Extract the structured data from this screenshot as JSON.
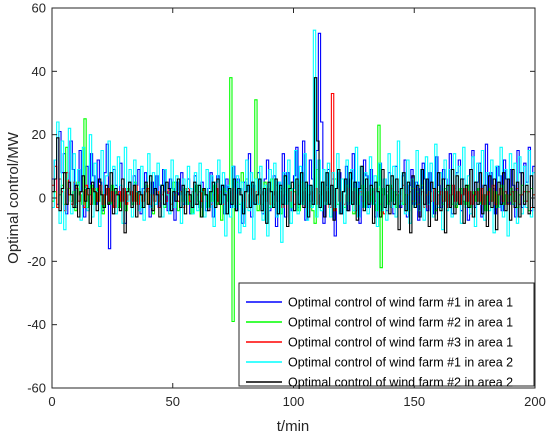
{
  "chart_data": {
    "type": "line",
    "title": "",
    "xlabel": "t/min",
    "ylabel": "Optimal control/MW",
    "xlim": [
      0,
      200
    ],
    "ylim": [
      -60,
      60
    ],
    "xticks": [
      0,
      50,
      100,
      150,
      200
    ],
    "yticks": [
      -60,
      -40,
      -20,
      0,
      20,
      40,
      60
    ],
    "grid": false,
    "legend_position": "bottom-right",
    "step": true,
    "series": [
      {
        "name": "Optimal control of wind farm #1 in area 1",
        "color": "#0000ff",
        "values": [
          6,
          12,
          -2,
          21,
          8,
          14,
          -5,
          3,
          18,
          9,
          -3,
          4,
          15,
          2,
          -6,
          10,
          3,
          14,
          7,
          -2,
          12,
          5,
          -4,
          8,
          17,
          -16,
          2,
          9,
          4,
          -3,
          11,
          6,
          -8,
          3,
          5,
          -2,
          7,
          4,
          9,
          -5,
          3,
          8,
          2,
          -6,
          5,
          1,
          7,
          -3,
          4,
          9,
          2,
          -4,
          6,
          3,
          -7,
          5,
          1,
          8,
          -2,
          3,
          6,
          -5,
          2,
          7,
          4,
          -3,
          5,
          1,
          -4,
          3,
          8,
          -6,
          2,
          7,
          -1,
          4,
          -5,
          6,
          2,
          -3,
          10,
          -4,
          6,
          3,
          -8,
          5,
          2,
          14,
          -6,
          4,
          -2,
          8,
          3,
          -5,
          6,
          12,
          -4,
          2,
          7,
          -9,
          5,
          3,
          14,
          -6,
          8,
          2,
          -4,
          7,
          16,
          -3,
          5,
          18,
          -7,
          4,
          12,
          6,
          -2,
          15,
          52,
          24,
          -8,
          4,
          9,
          -3,
          6,
          -12,
          3,
          8,
          -5,
          2,
          10,
          -4,
          6,
          14,
          -2,
          5,
          -8,
          3,
          12,
          7,
          -3,
          9,
          2,
          -6,
          4,
          11,
          -2,
          6,
          -4,
          8,
          3,
          -5,
          10,
          2,
          -3,
          7,
          12,
          -6,
          4,
          9,
          -2,
          5,
          -7,
          3,
          11,
          6,
          -4,
          8,
          2,
          -5,
          13,
          4,
          -3,
          9,
          6,
          -2,
          14,
          -5,
          3,
          8,
          12,
          -4,
          6,
          2,
          -7,
          9,
          15,
          -3,
          5,
          11,
          -6,
          4,
          17,
          -2,
          8,
          3,
          -5,
          10,
          7,
          -4,
          12,
          6,
          -2,
          9,
          4,
          -6,
          15,
          8,
          -3,
          11,
          5,
          16,
          -4,
          10
        ]
      },
      {
        "name": "Optimal control of wind farm #2 in area 1",
        "color": "#00ff00",
        "values": [
          -1,
          2,
          -3,
          1,
          4,
          -2,
          16,
          3,
          -1,
          2,
          -4,
          5,
          1,
          -2,
          25,
          -3,
          1,
          4,
          -2,
          3,
          -1,
          2,
          -5,
          1,
          3,
          -2,
          4,
          -1,
          2,
          -3,
          1,
          2,
          -4,
          3,
          1,
          -2,
          5,
          -1,
          2,
          -3,
          1,
          4,
          -2,
          1,
          -5,
          3,
          2,
          -1,
          4,
          -3,
          1,
          2,
          -2,
          5,
          1,
          -4,
          2,
          -1,
          3,
          -2,
          1,
          -5,
          2,
          4,
          -1,
          -6,
          3,
          1,
          -3,
          2,
          -1,
          4,
          -2,
          1,
          -7,
          3,
          2,
          -1,
          38,
          -39,
          3,
          5,
          -2,
          8,
          -3,
          6,
          -1,
          4,
          2,
          31,
          -4,
          3,
          -2,
          5,
          1,
          -3,
          6,
          -2,
          4,
          1,
          -5,
          3,
          2,
          -1,
          4,
          -3,
          2,
          1,
          -4,
          5,
          -2,
          3,
          1,
          -1,
          -4,
          -8,
          9,
          2,
          -3,
          5,
          -2,
          3,
          1,
          -4,
          6,
          -2,
          2,
          1,
          -3,
          4,
          -1,
          2,
          -5,
          3,
          -2,
          1,
          4,
          -3,
          2,
          -1,
          3,
          -2,
          -4,
          23,
          -22,
          3,
          1,
          -2,
          4,
          -1,
          2,
          -3,
          1,
          3,
          -2,
          1,
          -4,
          2,
          3,
          -1,
          2,
          -2,
          4,
          -3,
          1,
          2,
          -1,
          3,
          -4,
          2,
          1,
          -2,
          3,
          -1,
          4,
          -2,
          1,
          -3,
          2,
          3,
          -1,
          -2,
          4,
          -3,
          1,
          2,
          -1,
          3,
          -2,
          1,
          -4,
          2,
          3,
          -1,
          2,
          -3,
          1,
          4,
          -2,
          1,
          -1,
          3,
          -2,
          2,
          -3,
          1,
          4,
          -1,
          2,
          -4,
          3,
          1
        ]
      },
      {
        "name": "Optimal control of wind farm #3 in area 1",
        "color": "#ff0000",
        "values": [
          4,
          10,
          -3,
          6,
          2,
          -4,
          8,
          1,
          -2,
          5,
          3,
          -1,
          2,
          -3,
          4,
          1,
          -2,
          3,
          2,
          -1,
          4,
          -2,
          1,
          3,
          -1,
          2,
          -3,
          1,
          2,
          -1,
          3,
          -2,
          1,
          2,
          -1,
          4,
          -2,
          1,
          -1,
          2,
          3,
          -2,
          1,
          -1,
          2,
          -3,
          1,
          2,
          -1,
          3,
          -2,
          1,
          2,
          -1,
          2,
          -3,
          1,
          3,
          -1,
          2,
          -2,
          1,
          2,
          -1,
          3,
          -1,
          2,
          -2,
          1,
          3,
          -1,
          2,
          -2,
          1,
          2,
          -1,
          3,
          -2,
          1,
          2,
          -1,
          2,
          -3,
          1,
          3,
          -1,
          2,
          -2,
          1,
          2,
          -1,
          3,
          -2,
          1,
          2,
          -1,
          2,
          -3,
          1,
          3,
          -1,
          2,
          -2,
          1,
          4,
          -1,
          2,
          -3,
          1,
          2,
          -1,
          3,
          -2,
          1,
          5,
          -1,
          2,
          -3,
          33,
          -4,
          3,
          -1,
          2,
          -2,
          1,
          3,
          -1,
          2,
          -4,
          1,
          2,
          -1,
          3,
          -2,
          1,
          2,
          -1,
          3,
          -2,
          1,
          -5,
          2,
          -1,
          3,
          -2,
          1,
          2,
          -1,
          4,
          -2,
          1,
          2,
          -1,
          3,
          -2,
          1,
          2,
          -3,
          1,
          2,
          -1,
          3,
          -2,
          1,
          2,
          -1,
          2,
          -3,
          1,
          4,
          -1,
          2,
          -2,
          1,
          3,
          -1,
          2,
          -2,
          1,
          2,
          -1,
          3,
          -2,
          1,
          2,
          -1,
          4,
          -2,
          1,
          3,
          -1,
          2,
          -2,
          1,
          2,
          -1,
          3,
          -2,
          1,
          2,
          -1,
          2,
          -3,
          1
        ]
      },
      {
        "name": "Optimal control of wind farm #1 in area 2",
        "color": "#00ffff",
        "values": [
          -3,
          12,
          24,
          -8,
          18,
          -10,
          6,
          22,
          -5,
          14,
          -2,
          9,
          -7,
          16,
          3,
          -4,
          20,
          -6,
          11,
          2,
          -9,
          15,
          -3,
          7,
          18,
          -2,
          10,
          -5,
          13,
          4,
          -8,
          16,
          -1,
          9,
          -6,
          12,
          2,
          -4,
          10,
          -7,
          5,
          14,
          -3,
          8,
          -2,
          11,
          4,
          -6,
          9,
          1,
          -5,
          12,
          -3,
          7,
          2,
          -8,
          6,
          -2,
          10,
          3,
          -5,
          8,
          -4,
          11,
          2,
          -6,
          9,
          -3,
          7,
          -9,
          5,
          12,
          -2,
          8,
          -12,
          4,
          -6,
          10,
          -3,
          7,
          -11,
          5,
          -9,
          12,
          -4,
          8,
          -13,
          6,
          -2,
          10,
          -7,
          4,
          -12,
          9,
          -3,
          11,
          -6,
          5,
          -14,
          8,
          -2,
          12,
          -8,
          3,
          15,
          -5,
          10,
          -2,
          14,
          -7,
          4,
          -3,
          53,
          -6,
          12,
          -4,
          9,
          -2,
          11,
          -6,
          8,
          -3,
          14,
          -5,
          6,
          -8,
          12,
          -2,
          9,
          -4,
          16,
          -6,
          10,
          -3,
          8,
          -5,
          13,
          -2,
          7,
          -9,
          11,
          -4,
          6,
          -7,
          14,
          -3,
          10,
          -6,
          18,
          -2,
          8,
          -5,
          12,
          -8,
          6,
          -3,
          15,
          -4,
          9,
          -7,
          13,
          -2,
          11,
          -6,
          17,
          -3,
          8,
          -10,
          12,
          -4,
          9,
          -6,
          14,
          -2,
          10,
          -8,
          16,
          -3,
          7,
          -5,
          13,
          -9,
          11,
          -2,
          15,
          -7,
          8,
          -4,
          12,
          -11,
          10,
          -3,
          16,
          -6,
          9,
          -12,
          14,
          -2,
          11,
          -8,
          13,
          -5,
          10,
          -3,
          15,
          -6,
          8
        ]
      },
      {
        "name": "Optimal control of wind farm #2 in area 2",
        "color": "#000000",
        "values": [
          2,
          6,
          19,
          -4,
          3,
          8,
          -2,
          5,
          1,
          -3,
          4,
          -6,
          2,
          7,
          -1,
          3,
          -8,
          5,
          2,
          -4,
          6,
          1,
          -3,
          4,
          -2,
          8,
          -5,
          3,
          1,
          -4,
          6,
          -11,
          2,
          5,
          -3,
          4,
          -6,
          2,
          1,
          -3,
          5,
          -2,
          7,
          -4,
          3,
          1,
          -6,
          4,
          -2,
          5,
          3,
          -4,
          2,
          -1,
          6,
          -3,
          4,
          -5,
          2,
          1,
          -3,
          5,
          -2,
          4,
          -6,
          3,
          1,
          -4,
          2,
          5,
          -3,
          6,
          -2,
          4,
          1,
          -5,
          3,
          -2,
          6,
          -4,
          3,
          1,
          -5,
          2,
          4,
          -3,
          5,
          -2,
          1,
          6,
          -4,
          3,
          -8,
          5,
          2,
          -3,
          6,
          -5,
          4,
          -2,
          7,
          -9,
          3,
          5,
          -4,
          6,
          -2,
          8,
          -3,
          5,
          -6,
          4,
          -2,
          38,
          18,
          -3,
          5,
          -6,
          8,
          -2,
          4,
          -7,
          3,
          9,
          -5,
          2,
          6,
          -4,
          8,
          -2,
          5,
          -7,
          3,
          10,
          -4,
          6,
          -2,
          4,
          -8,
          5,
          2,
          -6,
          9,
          -3,
          4,
          -5,
          7,
          -2,
          6,
          -10,
          3,
          8,
          -4,
          5,
          -11,
          7,
          -3,
          4,
          -6,
          9,
          -2,
          6,
          -9,
          5,
          3,
          -7,
          8,
          -4,
          6,
          -11,
          4,
          -3,
          9,
          -5,
          7,
          -2,
          6,
          -8,
          4,
          -3,
          9,
          -6,
          5,
          -2,
          8,
          -5,
          4,
          -9,
          7,
          -3,
          6,
          -10,
          5,
          -2,
          8,
          -4,
          6,
          -7,
          9,
          -3,
          5,
          -6,
          8,
          -2,
          4,
          -5,
          7,
          -3
        ]
      }
    ]
  }
}
